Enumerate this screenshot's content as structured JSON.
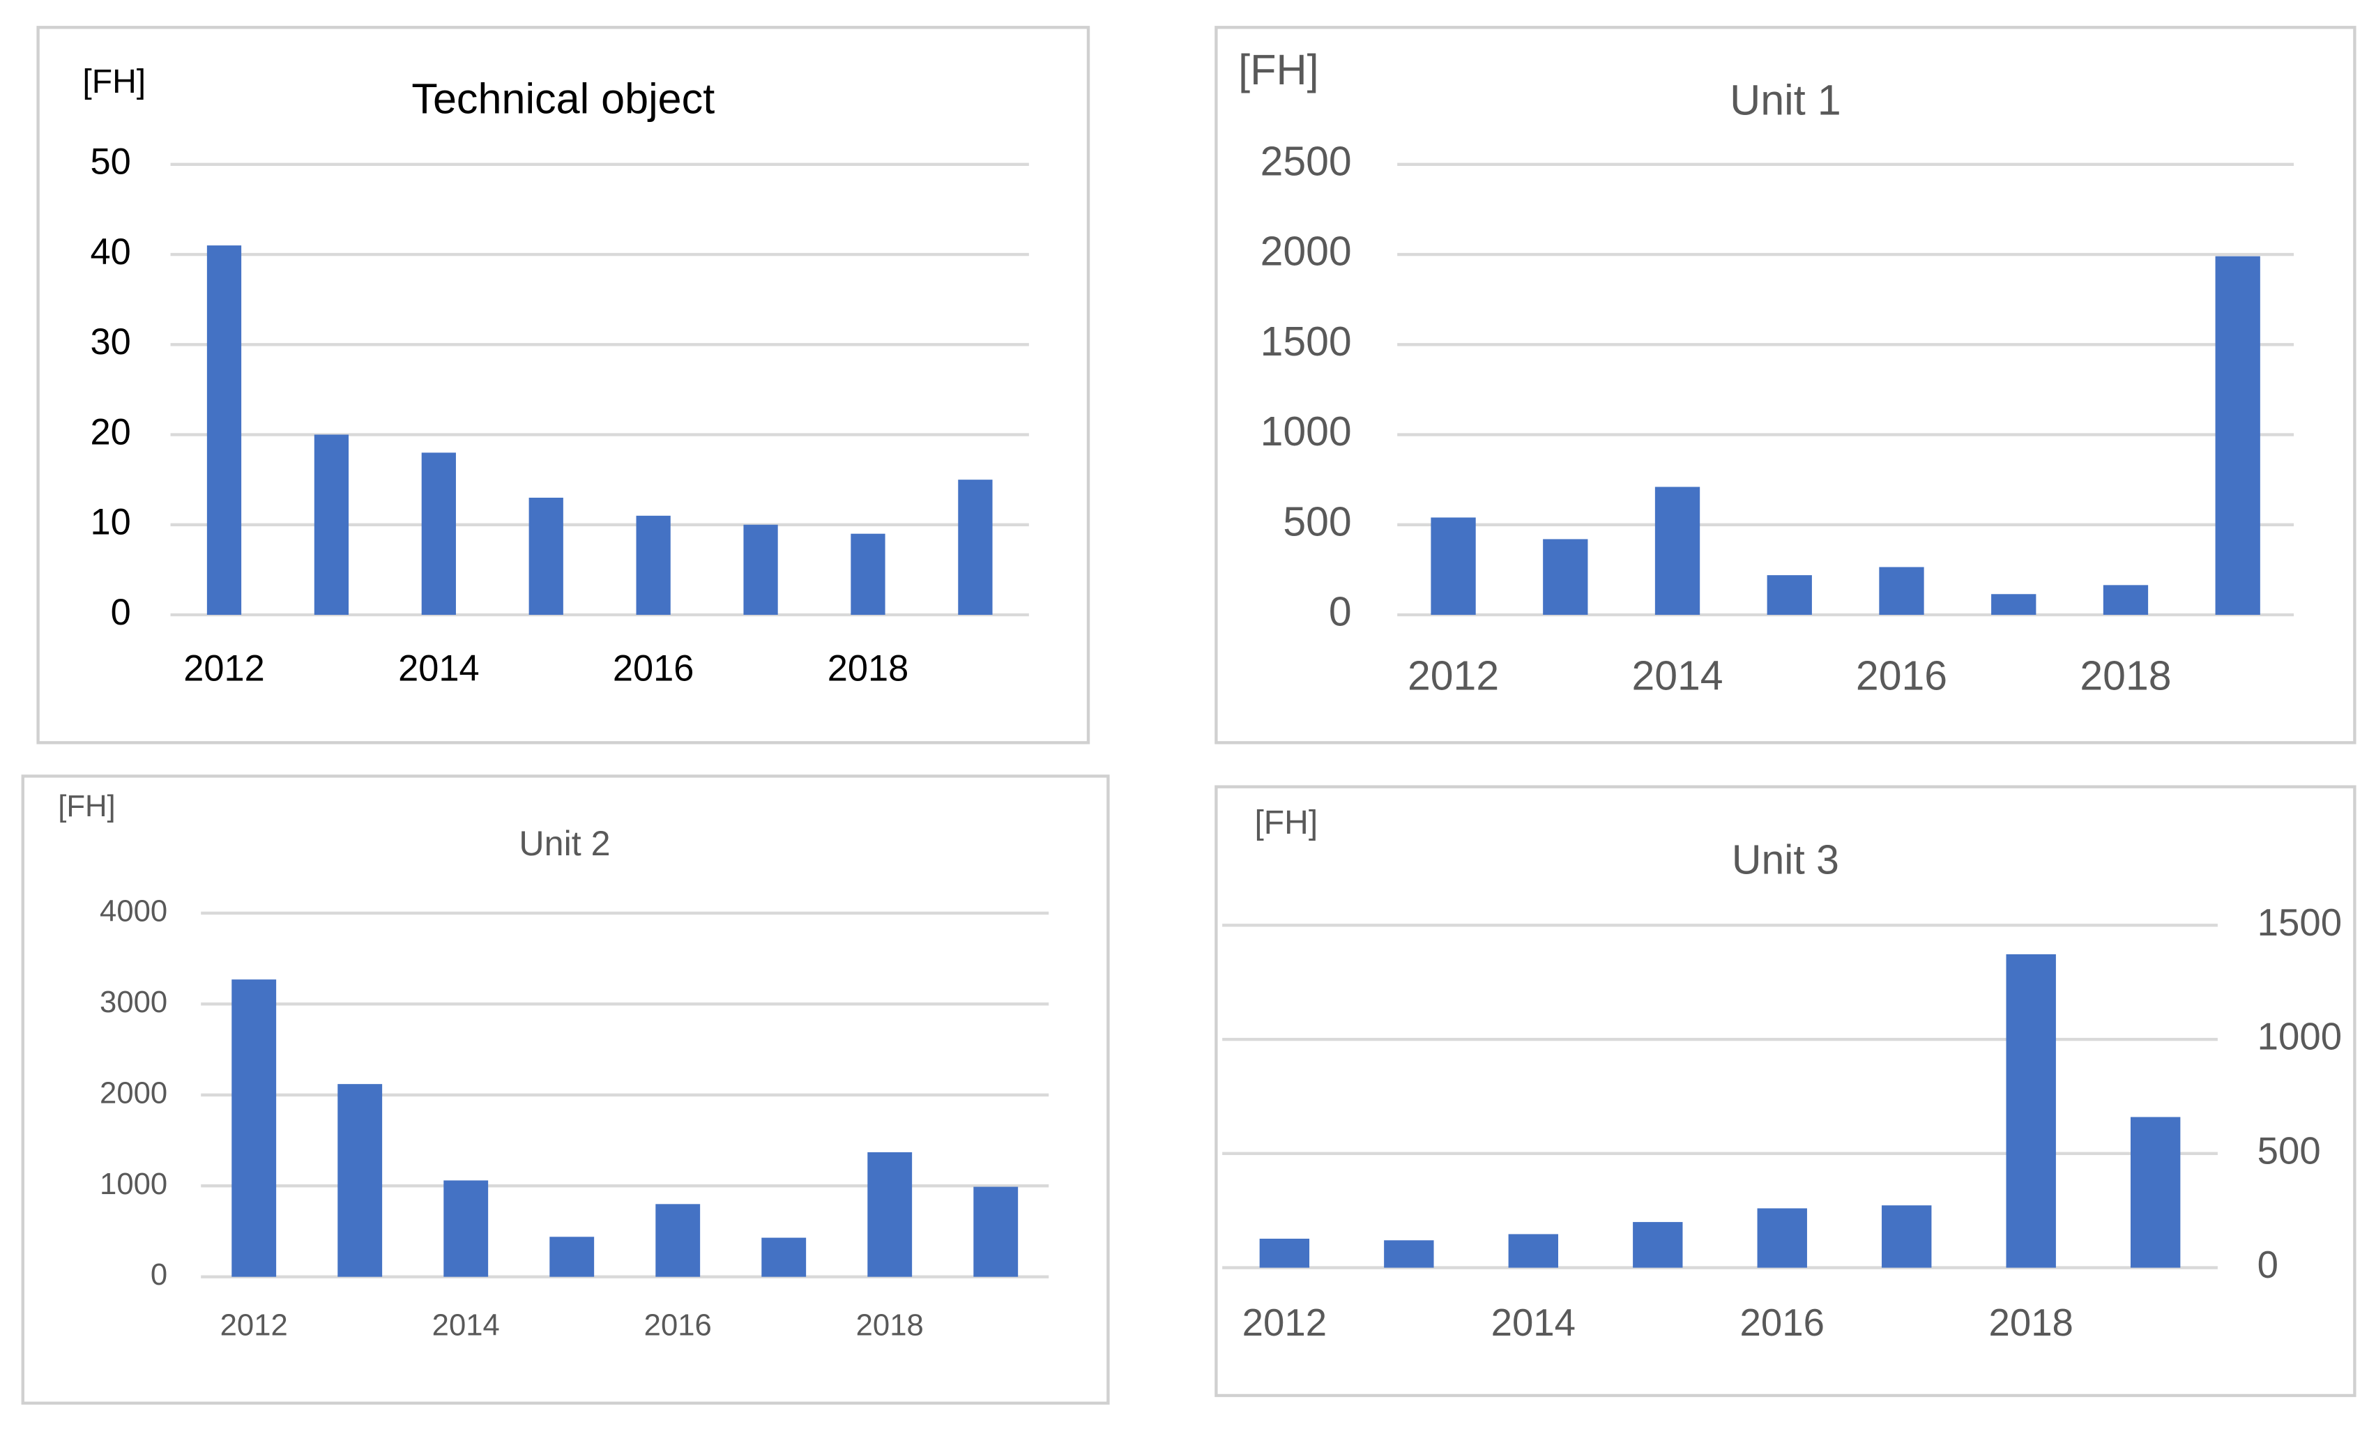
{
  "chart_data": [
    {
      "type": "bar",
      "title": "Technical object",
      "y_label": "[FH]",
      "categories": [
        "2012",
        null,
        "2014",
        null,
        "2016",
        null,
        "2018",
        null
      ],
      "values": [
        41,
        20,
        18,
        13,
        11,
        10,
        9,
        15
      ],
      "color": "#4472c4",
      "ylim": [
        0,
        50
      ],
      "yticks": [
        0,
        10,
        20,
        30,
        40,
        50
      ],
      "grid": true,
      "y_axis_side": "left"
    },
    {
      "type": "bar",
      "title": "Unit 1",
      "y_label": "[FH]",
      "categories": [
        "2012",
        null,
        "2014",
        null,
        "2016",
        null,
        "2018",
        null
      ],
      "values": [
        540,
        420,
        710,
        220,
        265,
        115,
        165,
        1990
      ],
      "color": "#4472c4",
      "ylim": [
        0,
        2500
      ],
      "yticks": [
        0,
        500,
        1000,
        1500,
        2000,
        2500
      ],
      "grid": true,
      "y_axis_side": "left"
    },
    {
      "type": "bar",
      "title": "Unit 2",
      "y_label": "[FH]",
      "categories": [
        "2012",
        null,
        "2014",
        null,
        "2016",
        null,
        "2018",
        null
      ],
      "values": [
        3270,
        2120,
        1060,
        440,
        800,
        430,
        1370,
        990
      ],
      "color": "#4472c4",
      "ylim": [
        0,
        4000
      ],
      "yticks": [
        0,
        1000,
        2000,
        3000,
        4000
      ],
      "grid": true,
      "y_axis_side": "left"
    },
    {
      "type": "bar",
      "title": "Unit 3",
      "y_label": "[FH]",
      "categories": [
        "2012",
        null,
        "2014",
        null,
        "2016",
        null,
        "2018",
        null
      ],
      "values": [
        127,
        120,
        147,
        200,
        260,
        273,
        1373,
        660
      ],
      "color": "#4472c4",
      "ylim": [
        0,
        1500
      ],
      "yticks": [
        0,
        500,
        1000,
        1500
      ],
      "grid": true,
      "y_axis_side": "right"
    }
  ]
}
